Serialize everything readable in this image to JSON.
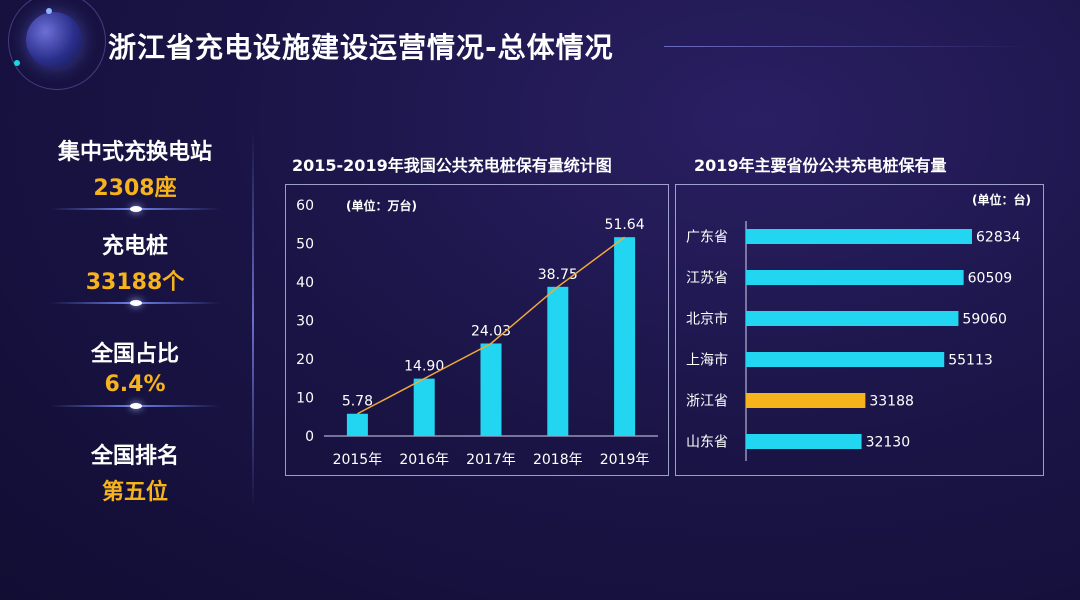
{
  "header": {
    "title": "浙江省充电设施建设运营情况-总体情况"
  },
  "stats": [
    {
      "label": "集中式充换电站",
      "value": "2308座"
    },
    {
      "label": "充电桩",
      "value": "33188个"
    },
    {
      "label": "全国占比",
      "value": "6.4%"
    },
    {
      "label": "全国排名",
      "value": "第五位"
    }
  ],
  "colors": {
    "bar": "#22d6f2",
    "highlight": "#f7b31c",
    "trend": "#f2a93b"
  },
  "chart_data": [
    {
      "type": "bar",
      "title": "2015-2019年我国公共充电桩保有量统计图",
      "unit_label": "(单位：万台)",
      "categories": [
        "2015年",
        "2016年",
        "2017年",
        "2018年",
        "2019年"
      ],
      "values": [
        5.78,
        14.9,
        24.03,
        38.75,
        51.64
      ],
      "value_labels": [
        "5.78",
        "14.90",
        "24.03",
        "38.75",
        "51.64"
      ],
      "y_ticks": [
        0,
        10,
        20,
        30,
        40,
        50,
        60
      ],
      "ylim": [
        0,
        60
      ],
      "trend_line": true
    },
    {
      "type": "bar",
      "orientation": "horizontal",
      "title": "2019年主要省份公共充电桩保有量",
      "unit_label": "(单位：台)",
      "categories": [
        "广东省",
        "江苏省",
        "北京市",
        "上海市",
        "浙江省",
        "山东省"
      ],
      "values": [
        62834,
        60509,
        59060,
        55113,
        33188,
        32130
      ],
      "value_labels": [
        "62834",
        "60509",
        "59060",
        "55113",
        "33188",
        "32130"
      ],
      "highlight": "浙江省",
      "xlim": [
        0,
        62834
      ]
    }
  ]
}
